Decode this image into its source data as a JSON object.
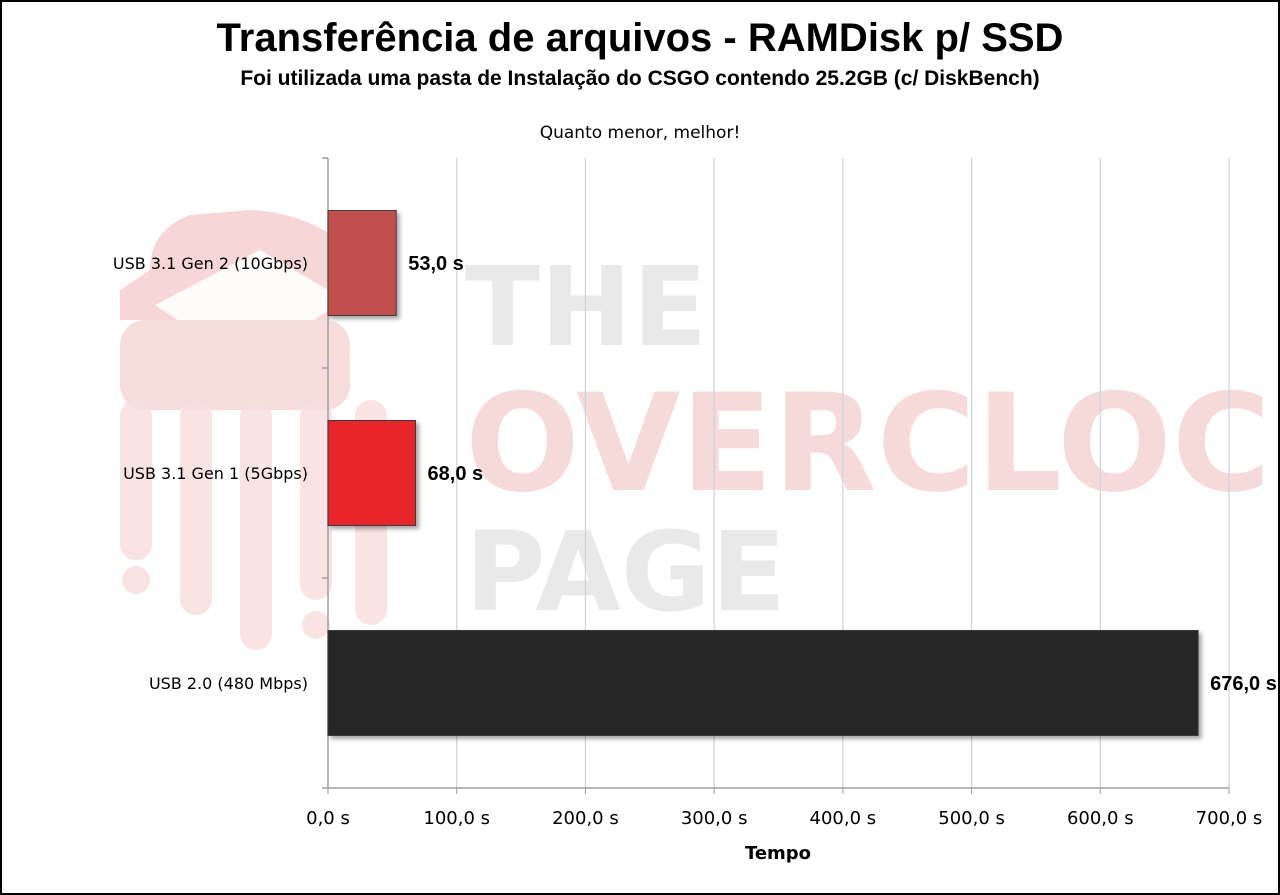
{
  "chart_data": {
    "type": "bar",
    "orientation": "horizontal",
    "title": "Transferência de arquivos - RAMDisk p/ SSD",
    "subtitle": "Foi utilizada uma pasta de Instalação do CSGO contendo 25.2GB (c/ DiskBench)",
    "note": "Quanto menor, melhor!",
    "categories": [
      "USB 3.1 Gen 2 (10Gbps)",
      "USB 3.1 Gen 1 (5Gbps)",
      "USB 2.0 (480 Mbps)"
    ],
    "values": [
      53.0,
      68.0,
      676.0
    ],
    "data_labels": [
      "53,0 s",
      "68,0 s",
      "676,0 s"
    ],
    "colors": [
      "#c0504d",
      "#e8262a",
      "#262626"
    ],
    "xlabel": "Tempo",
    "ylabel": "",
    "xlim": [
      0,
      700
    ],
    "x_ticks": [
      0,
      100,
      200,
      300,
      400,
      500,
      600,
      700
    ],
    "x_tick_labels": [
      "0,0 s",
      "100,0 s",
      "200,0 s",
      "300,0 s",
      "400,0 s",
      "500,0 s",
      "600,0 s",
      "700,0 s"
    ],
    "grid": true
  },
  "watermark": {
    "lines": [
      "THE",
      "OVERCLOCK",
      "PAGE"
    ]
  }
}
